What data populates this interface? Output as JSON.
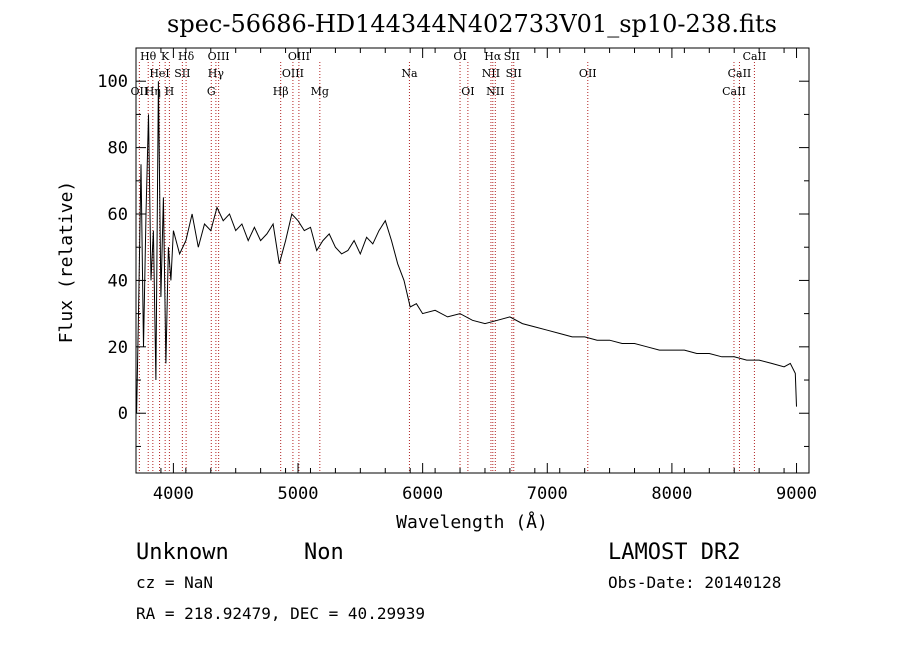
{
  "chart_data": {
    "type": "line",
    "title": "spec-56686-HD144344N402733V01_sp10-238.fits",
    "xlabel": "Wavelength (Å)",
    "ylabel": "Flux (relative)",
    "xlim": [
      3700,
      9100
    ],
    "ylim": [
      -18,
      110
    ],
    "x_ticks": [
      4000,
      5000,
      6000,
      7000,
      8000,
      9000
    ],
    "y_ticks": [
      0,
      20,
      40,
      60,
      80,
      100
    ],
    "grid": false,
    "line_color": "#000000",
    "marker_line_color": "#b22222",
    "series": [
      {
        "x": [
          3705,
          3720,
          3740,
          3760,
          3780,
          3800,
          3820,
          3840,
          3860,
          3880,
          3900,
          3920,
          3940,
          3960,
          3980,
          4000,
          4050,
          4100,
          4150,
          4200,
          4250,
          4300,
          4350,
          4400,
          4450,
          4500,
          4550,
          4600,
          4650,
          4700,
          4750,
          4800,
          4850,
          4900,
          4950,
          5000,
          5050,
          5100,
          5150,
          5200,
          5250,
          5300,
          5350,
          5400,
          5450,
          5500,
          5550,
          5600,
          5650,
          5700,
          5750,
          5800,
          5850,
          5900,
          5950,
          6000,
          6100,
          6200,
          6300,
          6400,
          6500,
          6600,
          6700,
          6800,
          6900,
          7000,
          7100,
          7200,
          7300,
          7400,
          7500,
          7600,
          7700,
          7800,
          7900,
          8000,
          8100,
          8200,
          8300,
          8400,
          8500,
          8600,
          8700,
          8800,
          8900,
          8950,
          8990,
          9000
        ],
        "y": [
          0,
          30,
          75,
          20,
          60,
          90,
          40,
          55,
          10,
          100,
          35,
          65,
          15,
          50,
          40,
          55,
          48,
          52,
          60,
          50,
          57,
          55,
          62,
          58,
          60,
          55,
          57,
          52,
          56,
          52,
          54,
          57,
          45,
          52,
          60,
          58,
          55,
          56,
          49,
          52,
          54,
          50,
          48,
          49,
          52,
          48,
          53,
          51,
          55,
          58,
          52,
          45,
          40,
          32,
          33,
          30,
          31,
          29,
          30,
          28,
          27,
          28,
          29,
          27,
          26,
          25,
          24,
          23,
          23,
          22,
          22,
          21,
          21,
          20,
          19,
          19,
          19,
          18,
          18,
          17,
          17,
          16,
          16,
          15,
          14,
          15,
          12,
          2
        ]
      }
    ],
    "lines": [
      {
        "label": "OII",
        "x": 3727,
        "row": 2
      },
      {
        "label": "Hθ",
        "x": 3798,
        "row": 0
      },
      {
        "label": "Hη",
        "x": 3835,
        "row": 2
      },
      {
        "label": "HeI",
        "x": 3889,
        "row": 1
      },
      {
        "label": "K",
        "x": 3934,
        "row": 0
      },
      {
        "label": "H",
        "x": 3968,
        "row": 2
      },
      {
        "label": "SII",
        "x": 4072,
        "row": 1
      },
      {
        "label": "Hδ",
        "x": 4102,
        "row": 0
      },
      {
        "label": "G",
        "x": 4304,
        "row": 2
      },
      {
        "label": "Hγ",
        "x": 4341,
        "row": 1
      },
      {
        "label": "OIII",
        "x": 4363,
        "row": 0
      },
      {
        "label": "Hβ",
        "x": 4861,
        "row": 2
      },
      {
        "label": "OIII",
        "x": 4959,
        "row": 1
      },
      {
        "label": "OIII",
        "x": 5007,
        "row": 0
      },
      {
        "label": "Mg",
        "x": 5175,
        "row": 2
      },
      {
        "label": "Na",
        "x": 5894,
        "row": 1
      },
      {
        "label": "OI",
        "x": 6300,
        "row": 0
      },
      {
        "label": "OI",
        "x": 6363,
        "row": 2
      },
      {
        "label": "NII",
        "x": 6548,
        "row": 1
      },
      {
        "label": "Hα",
        "x": 6563,
        "row": 0
      },
      {
        "label": "NII",
        "x": 6583,
        "row": 2
      },
      {
        "label": "SII",
        "x": 6716,
        "row": 0
      },
      {
        "label": "SII",
        "x": 6731,
        "row": 1
      },
      {
        "label": "OII",
        "x": 7325,
        "row": 1
      },
      {
        "label": "CaII",
        "x": 8498,
        "row": 2
      },
      {
        "label": "CaII",
        "x": 8542,
        "row": 1
      },
      {
        "label": "CaII",
        "x": 8662,
        "row": 0
      }
    ]
  },
  "info": {
    "class": "Unknown",
    "subclass": "Non",
    "survey": "LAMOST DR2",
    "cz": "cz = NaN",
    "obs_date": "Obs-Date: 20140128",
    "coords": "RA = 218.92479, DEC =  40.29939"
  }
}
